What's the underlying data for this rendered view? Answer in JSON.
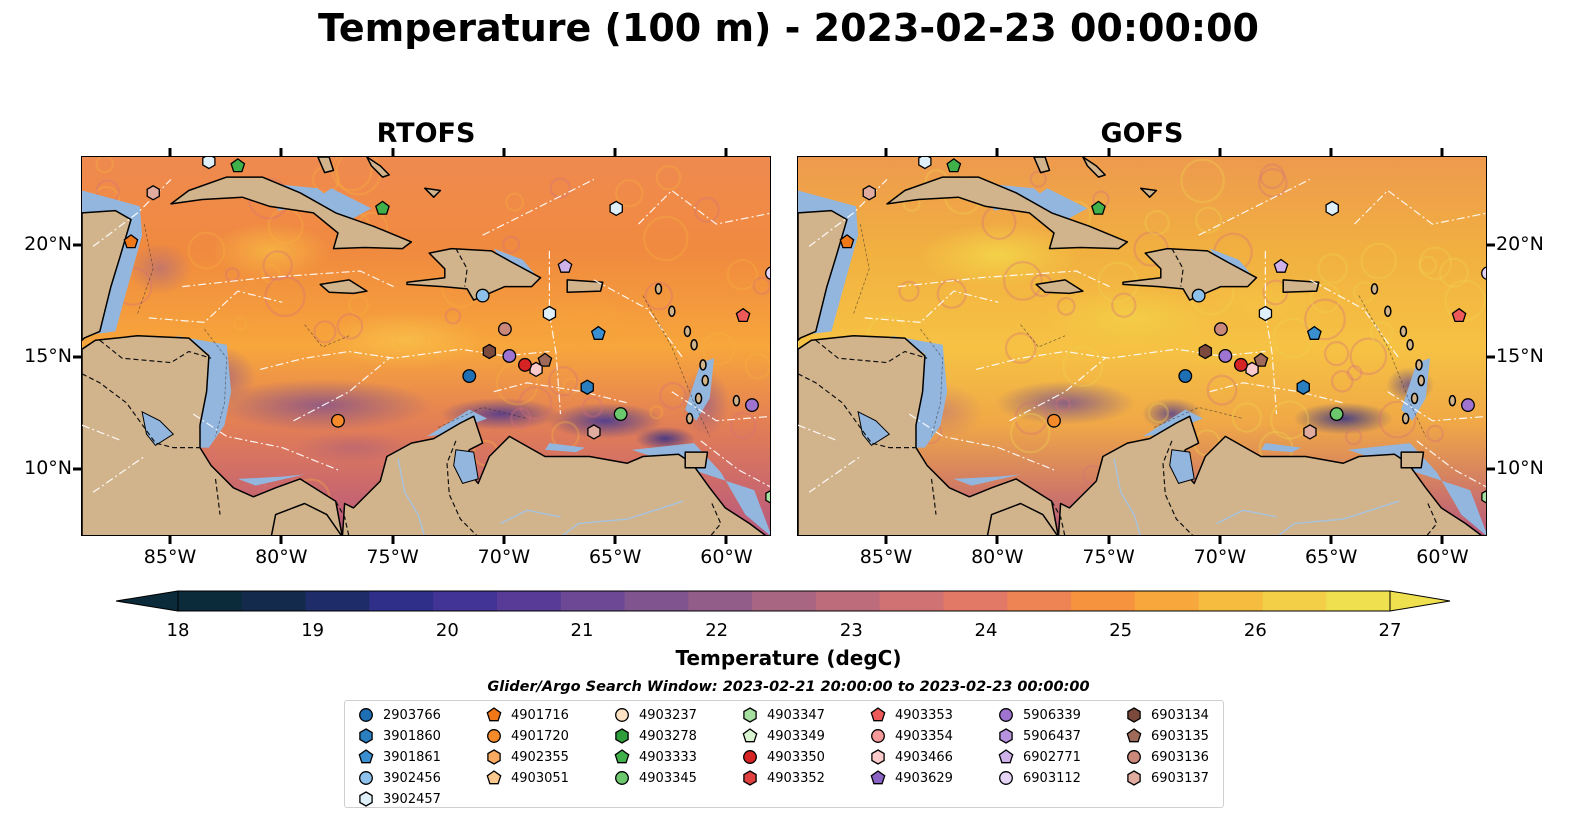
{
  "title": "Temperature (100 m) - 2023-02-23 00:00:00",
  "panels": [
    {
      "title": "RTOFS",
      "variant": "rtofs"
    },
    {
      "title": "GOFS",
      "variant": "gofs"
    }
  ],
  "axes": {
    "lon_labels": [
      "85°W",
      "80°W",
      "75°W",
      "70°W",
      "65°W",
      "60°W"
    ],
    "lat_labels": [
      "20°N",
      "15°N",
      "10°N"
    ],
    "lon_values": [
      -85,
      -80,
      -75,
      -70,
      -65,
      -60
    ],
    "lat_values": [
      20,
      15,
      10
    ],
    "lon_range": [
      -89,
      -58
    ],
    "lat_range": [
      7,
      24
    ]
  },
  "colorbar": {
    "label": "Temperature (degC)",
    "ticks": [
      "18",
      "19",
      "20",
      "21",
      "22",
      "23",
      "24",
      "25",
      "26",
      "27"
    ],
    "min": 18,
    "max": 27,
    "extend": "both",
    "colors": [
      "#0b2a3a",
      "#142a4c",
      "#1e2c6a",
      "#2f2f8a",
      "#423396",
      "#583b96",
      "#6c4895",
      "#80548e",
      "#935d89",
      "#a86683",
      "#bd6c7c",
      "#d07273",
      "#e27866",
      "#ee8453",
      "#f5933f",
      "#f8a73d",
      "#f6bc40",
      "#f3cf47",
      "#eee04f"
    ]
  },
  "legend": {
    "title": "Glider/Argo Search Window: 2023-02-21 20:00:00 to 2023-02-23 00:00:00",
    "columns": [
      [
        {
          "id": "2903766",
          "marker": "circle",
          "color": "#1f6fb4"
        },
        {
          "id": "3901860",
          "marker": "hexagon",
          "color": "#2a7fc0"
        },
        {
          "id": "3901861",
          "marker": "pentagon",
          "color": "#3a8fd0"
        },
        {
          "id": "3902456",
          "marker": "circle",
          "color": "#8dc0ea"
        },
        {
          "id": "3902457",
          "marker": "hexagon",
          "color": "#dff0fb"
        }
      ],
      [
        {
          "id": "4901716",
          "marker": "pentagon",
          "color": "#f07818"
        },
        {
          "id": "4901720",
          "marker": "circle",
          "color": "#f58a2a"
        },
        {
          "id": "4902355",
          "marker": "hexagon",
          "color": "#f8aa60"
        },
        {
          "id": "4903051",
          "marker": "pentagon",
          "color": "#fbc88e"
        }
      ],
      [
        {
          "id": "4903237",
          "marker": "circle",
          "color": "#fde2c4"
        },
        {
          "id": "4903278",
          "marker": "hexagon",
          "color": "#2e9e3a"
        },
        {
          "id": "4903333",
          "marker": "pentagon",
          "color": "#40b04a"
        },
        {
          "id": "4903345",
          "marker": "circle",
          "color": "#6cc86c"
        }
      ],
      [
        {
          "id": "4903347",
          "marker": "hexagon",
          "color": "#a6e0a0"
        },
        {
          "id": "4903349",
          "marker": "pentagon",
          "color": "#d8f4d0"
        },
        {
          "id": "4903350",
          "marker": "circle",
          "color": "#d62424"
        },
        {
          "id": "4903352",
          "marker": "hexagon",
          "color": "#e04040"
        }
      ],
      [
        {
          "id": "4903353",
          "marker": "pentagon",
          "color": "#ee5a5a"
        },
        {
          "id": "4903354",
          "marker": "circle",
          "color": "#f49a9a"
        },
        {
          "id": "4903466",
          "marker": "hexagon",
          "color": "#fbcaca"
        },
        {
          "id": "4903629",
          "marker": "pentagon",
          "color": "#8a63c4"
        }
      ],
      [
        {
          "id": "5906339",
          "marker": "circle",
          "color": "#9f74d0"
        },
        {
          "id": "5906437",
          "marker": "hexagon",
          "color": "#b792de"
        },
        {
          "id": "6902771",
          "marker": "pentagon",
          "color": "#cfb2ea"
        },
        {
          "id": "6903112",
          "marker": "circle",
          "color": "#e6d4f6"
        }
      ],
      [
        {
          "id": "6903134",
          "marker": "hexagon",
          "color": "#7b4a3c"
        },
        {
          "id": "6903135",
          "marker": "pentagon",
          "color": "#a06a5a"
        },
        {
          "id": "6903136",
          "marker": "circle",
          "color": "#c9887a"
        },
        {
          "id": "6903137",
          "marker": "hexagon",
          "color": "#e0aca0"
        }
      ]
    ]
  },
  "floats": [
    {
      "id": "3902457",
      "lon": -83.3,
      "lat": 23.8
    },
    {
      "id": "4903333",
      "lon": -82.0,
      "lat": 23.6
    },
    {
      "id": "6903137",
      "lon": -85.8,
      "lat": 22.4
    },
    {
      "id": "4903333",
      "lon": -75.5,
      "lat": 21.7
    },
    {
      "id": "4901716",
      "lon": -86.8,
      "lat": 20.2
    },
    {
      "id": "3902457",
      "lon": -65.0,
      "lat": 21.7
    },
    {
      "id": "6902771",
      "lon": -67.3,
      "lat": 19.1
    },
    {
      "id": "6903112",
      "lon": -58.0,
      "lat": 18.8
    },
    {
      "id": "3902456",
      "lon": -71.0,
      "lat": 17.8
    },
    {
      "id": "3902457",
      "lon": -68.0,
      "lat": 17.0
    },
    {
      "id": "4903353",
      "lon": -59.3,
      "lat": 16.9
    },
    {
      "id": "3901861",
      "lon": -65.8,
      "lat": 16.1
    },
    {
      "id": "6903136",
      "lon": -70.0,
      "lat": 16.3
    },
    {
      "id": "6903134",
      "lon": -70.7,
      "lat": 15.3
    },
    {
      "id": "5906339",
      "lon": -69.8,
      "lat": 15.1
    },
    {
      "id": "6903135",
      "lon": -68.2,
      "lat": 14.9
    },
    {
      "id": "4903466",
      "lon": -68.6,
      "lat": 14.5
    },
    {
      "id": "4903350",
      "lon": -69.1,
      "lat": 14.7
    },
    {
      "id": "2903766",
      "lon": -71.6,
      "lat": 14.2
    },
    {
      "id": "3901860",
      "lon": -66.3,
      "lat": 13.7
    },
    {
      "id": "4903345",
      "lon": -64.8,
      "lat": 12.5
    },
    {
      "id": "5906339",
      "lon": -58.9,
      "lat": 12.9
    },
    {
      "id": "4901720",
      "lon": -77.5,
      "lat": 12.2
    },
    {
      "id": "6903137",
      "lon": -66.0,
      "lat": 11.7
    },
    {
      "id": "4903347",
      "lon": -58.0,
      "lat": 8.8
    }
  ]
}
